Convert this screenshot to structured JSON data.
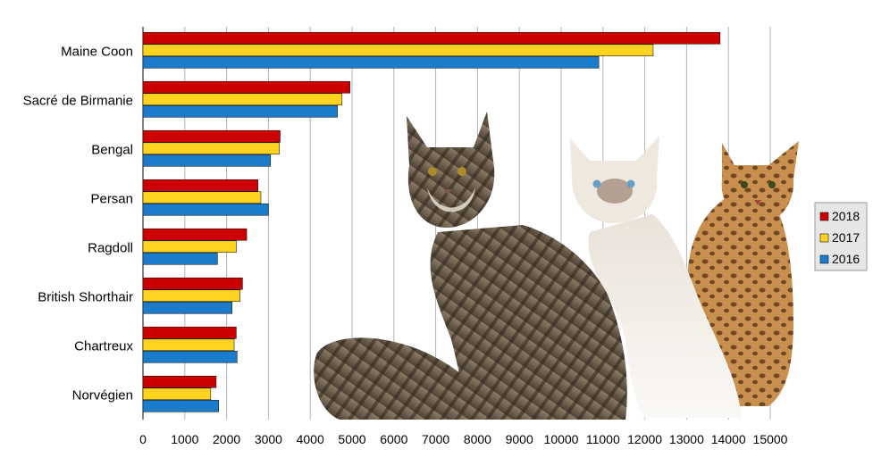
{
  "chart_data": {
    "type": "bar",
    "orientation": "horizontal",
    "categories": [
      "Maine Coon",
      "Sacré de Birmanie",
      "Bengal",
      "Persan",
      "Ragdoll",
      "British Shorthair",
      "Chartreux",
      "Norvégien"
    ],
    "series": [
      {
        "name": "2018",
        "color": "#cc0000",
        "values": [
          13800,
          4950,
          3280,
          2750,
          2480,
          2380,
          2230,
          1750
        ]
      },
      {
        "name": "2017",
        "color": "#ffd320",
        "values": [
          12200,
          4760,
          3260,
          2820,
          2230,
          2320,
          2180,
          1620
        ]
      },
      {
        "name": "2016",
        "color": "#1c7ccc",
        "values": [
          10900,
          4650,
          3050,
          3000,
          1780,
          2130,
          2250,
          1810
        ]
      }
    ],
    "xticks": [
      "0",
      "1000",
      "2000",
      "3000",
      "4000",
      "5000",
      "6000",
      "7000",
      "8000",
      "9000",
      "10000",
      "11000",
      "12000",
      "13000",
      "14000",
      "15000"
    ],
    "xlim": [
      0,
      15000
    ],
    "grid": true,
    "legend_position": "right",
    "title": "",
    "xlabel": "",
    "ylabel": "",
    "background_image": "cats-photo"
  }
}
